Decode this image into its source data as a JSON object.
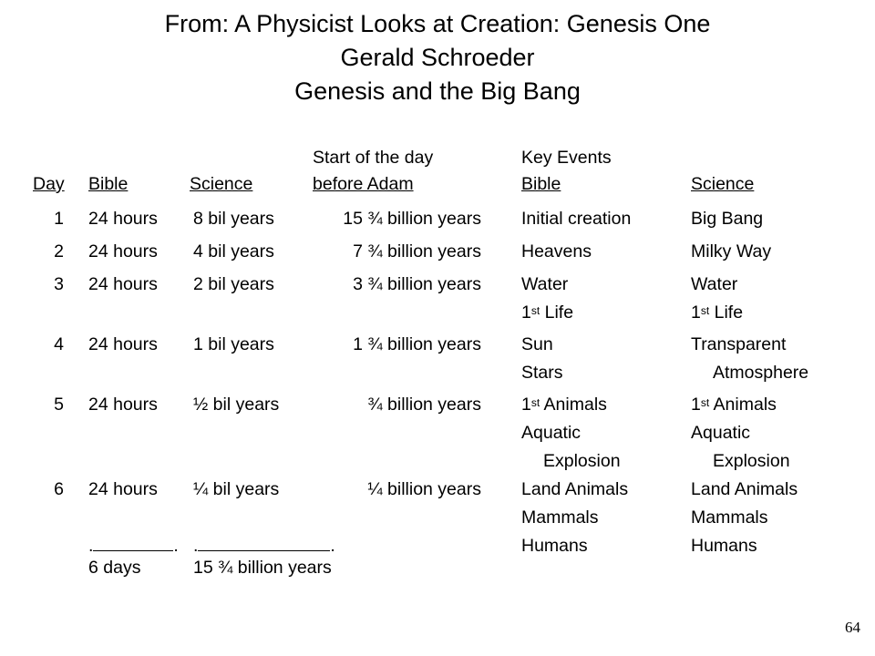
{
  "title": {
    "line1": "From:   A Physicist Looks at Creation: Genesis One",
    "line2": "Gerald Schroeder",
    "line3": "Genesis and the Big Bang"
  },
  "headers": {
    "day": "Day",
    "bible": "Bible",
    "science": "Science",
    "start_line1": "Start of the day",
    "start_line2": "before Adam",
    "key_events": "Key Events",
    "ke_bible": "Bible",
    "ke_science": "Science"
  },
  "rows": [
    {
      "day": "1",
      "bible": "24 hours",
      "science": "8 bil years",
      "start": "15 ¾ billion years",
      "key_bible": [
        "Initial creation"
      ],
      "key_science": [
        "Big Bang"
      ]
    },
    {
      "day": "2",
      "bible": "24 hours",
      "science": "4 bil years",
      "start": "7 ¾ billion years",
      "key_bible": [
        "Heavens"
      ],
      "key_science": [
        "Milky Way"
      ]
    },
    {
      "day": "3",
      "bible": "24 hours",
      "science": "2 bil years",
      "start": "3 ¾ billion years",
      "key_bible": [
        "Water",
        "1st Life"
      ],
      "key_science": [
        "Water",
        "1st Life"
      ]
    },
    {
      "day": "4",
      "bible": "24 hours",
      "science": "1 bil years",
      "start": "1 ¾ billion years",
      "key_bible": [
        "Sun",
        "Stars"
      ],
      "key_science": [
        "Transparent",
        "Atmosphere"
      ]
    },
    {
      "day": "5",
      "bible": "24 hours",
      "science": "½ bil years",
      "start": "¾ billion years",
      "key_bible": [
        "1st Animals",
        "Aquatic",
        "Explosion"
      ],
      "key_science": [
        "1st Animals",
        "Aquatic",
        "Explosion"
      ]
    },
    {
      "day": "6",
      "bible": "24 hours",
      "science": "¼ bil years",
      "start": "¼ billion years",
      "key_bible": [
        "Land Animals",
        "Mammals",
        "Humans"
      ],
      "key_science": [
        "Land Animals",
        "Mammals",
        "Humans"
      ]
    }
  ],
  "totals": {
    "bible": "6 days",
    "science": "15 ¾ billion years"
  },
  "page_number": "64"
}
